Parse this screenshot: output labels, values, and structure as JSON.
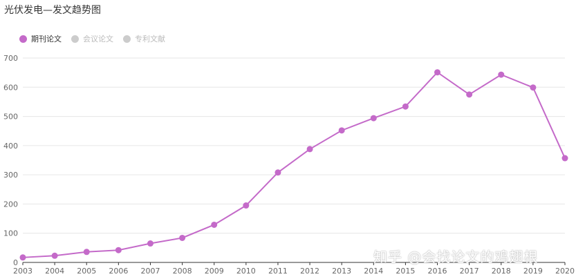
{
  "page": {
    "title": "光伏发电—发文趋势图",
    "watermark": "知乎 @会找论文的鸡翅根"
  },
  "legend": [
    {
      "name": "期刊论文",
      "color": "#c46ac9",
      "active": true
    },
    {
      "name": "会议论文",
      "color": "#cccccc",
      "active": false
    },
    {
      "name": "专利文献",
      "color": "#cccccc",
      "active": false
    }
  ],
  "chart_data": {
    "type": "line",
    "title": "光伏发电—发文趋势图",
    "xlabel": "",
    "ylabel": "",
    "ylim": [
      0,
      700
    ],
    "yticks": [
      0,
      100,
      200,
      300,
      400,
      500,
      600,
      700
    ],
    "categories": [
      "2003",
      "2004",
      "2005",
      "2006",
      "2007",
      "2008",
      "2009",
      "2010",
      "2011",
      "2012",
      "2013",
      "2014",
      "2015",
      "2016",
      "2017",
      "2018",
      "2019",
      "2020"
    ],
    "series": [
      {
        "name": "期刊论文",
        "color": "#c46ac9",
        "values": [
          17,
          23,
          36,
          42,
          65,
          84,
          129,
          195,
          308,
          388,
          452,
          494,
          534,
          651,
          575,
          643,
          599,
          357
        ]
      }
    ],
    "grid": true
  }
}
